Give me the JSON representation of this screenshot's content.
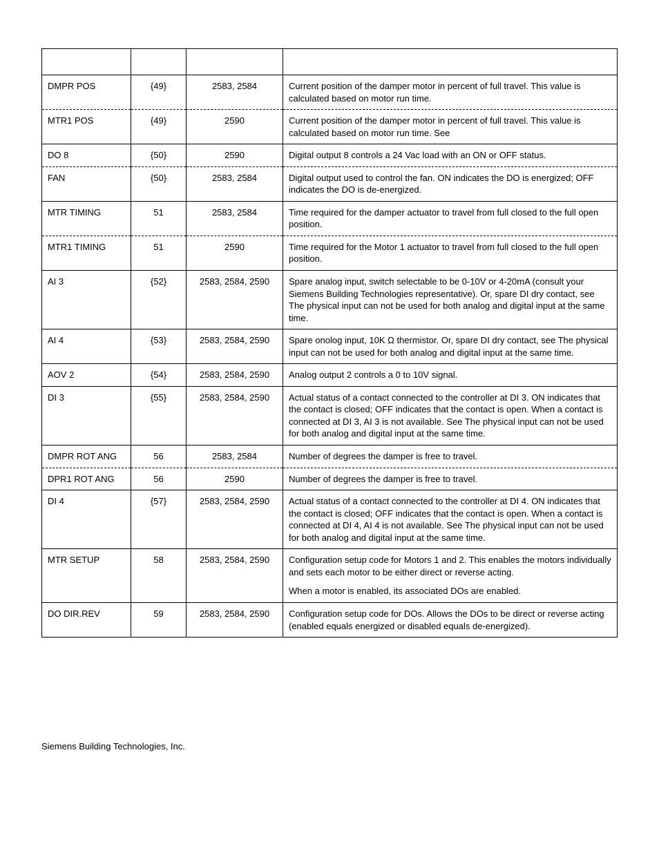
{
  "table": {
    "rows": [
      {
        "style": "solid",
        "descriptor": "DMPR POS",
        "number": "{49}",
        "app": "2583, 2584",
        "description": "Current position of the damper motor in percent of full travel. This value is calculated based on motor run time."
      },
      {
        "style": "dashed",
        "descriptor": "MTR1 POS",
        "number": "{49}",
        "app": "2590",
        "description": "Current position of the damper motor in percent of full travel. This value is calculated based on motor run time. See"
      },
      {
        "style": "solid",
        "descriptor": "DO 8",
        "number": "{50}",
        "app": "2590",
        "description": "Digital output 8 controls a 24 Vac load with an ON or OFF status."
      },
      {
        "style": "dashed",
        "descriptor": "FAN",
        "number": "{50}",
        "app": "2583, 2584",
        "description": "Digital output used to control the fan. ON indicates the DO is energized; OFF indicates the DO is de-energized."
      },
      {
        "style": "solid",
        "descriptor": "MTR TIMING",
        "number": "51",
        "app": "2583, 2584",
        "description": "Time required for the damper actuator to travel from full closed to the full open position."
      },
      {
        "style": "dashed",
        "descriptor": "MTR1 TIMING",
        "number": "51",
        "app": "2590",
        "description": "Time required for the Motor 1 actuator to travel from full closed to the full open position."
      },
      {
        "style": "solid",
        "descriptor": "AI 3",
        "number": "{52}",
        "app": "2583, 2584, 2590",
        "description": "Spare analog input, switch selectable to be 0-10V or 4-20mA (consult your Siemens Building Technologies representative). Or, spare DI dry contact, see           The physical input can not be used for both analog and digital input at the same time."
      },
      {
        "style": "solid",
        "descriptor": "AI 4",
        "number": "{53}",
        "app": "2583, 2584, 2590",
        "description": "Spare onolog input, 10K Ω thermistor. Or, spare DI dry contact, see            The physical input can not be used for both analog and digital input at the same time."
      },
      {
        "style": "solid",
        "descriptor": "AOV 2",
        "number": "{54}",
        "app": "2583, 2584, 2590",
        "description": "Analog output 2 controls a 0 to 10V signal."
      },
      {
        "style": "solid",
        "descriptor": "DI 3",
        "number": "{55}",
        "app": "2583, 2584, 2590",
        "description": "Actual status of a contact connected to the controller at DI 3. ON indicates that the contact is closed; OFF indicates that the contact is open. When a contact is connected at DI 3, AI 3 is not available. See           The physical input can not be used for both analog and digital input at the same time."
      },
      {
        "style": "solid",
        "descriptor": "DMPR ROT ANG",
        "number": "56",
        "app": "2583, 2584",
        "description": "Number of degrees the damper is free to travel."
      },
      {
        "style": "dashed",
        "descriptor": "DPR1 ROT ANG",
        "number": "56",
        "app": "2590",
        "description": "Number of degrees the damper is free to travel."
      },
      {
        "style": "solid",
        "descriptor": "DI 4",
        "number": "{57}",
        "app": "2583, 2584, 2590",
        "description": "Actual status of a contact connected to the controller at DI 4. ON indicates that the contact is closed; OFF indicates that the contact is open. When a contact is connected at DI 4, AI 4 is not available. See           The physical input can not be used for both analog and digital input at the same time."
      },
      {
        "style": "solid",
        "descriptor": "MTR SETUP",
        "number": "58",
        "app": "2583, 2584, 2590",
        "description": "Configuration setup code for Motors 1 and 2. This enables the motors individually and sets each motor to be either direct or reverse acting.",
        "note": "           When a motor is enabled, its associated DOs are enabled."
      },
      {
        "style": "solid",
        "descriptor": "DO DIR.REV",
        "number": "59",
        "app": "2583, 2584, 2590",
        "description": "Configuration setup code for DOs. Allows the DOs to be direct or reverse acting (enabled equals energized or disabled equals de-energized)."
      }
    ]
  },
  "footer": "Siemens Building Technologies, Inc."
}
